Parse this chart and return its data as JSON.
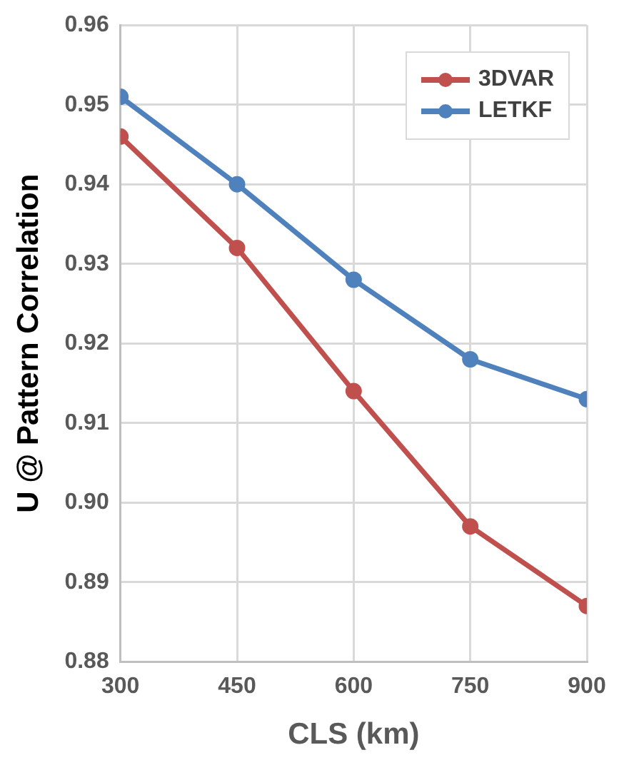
{
  "chart_data": {
    "type": "line",
    "xlabel": "CLS (km)",
    "ylabel": "U @ Pattern Correlation",
    "x": [
      300,
      450,
      600,
      750,
      900
    ],
    "series": [
      {
        "name": "3DVAR",
        "color": "#c0504d",
        "values": [
          0.946,
          0.932,
          0.914,
          0.897,
          0.887
        ]
      },
      {
        "name": "LETKF",
        "color": "#4f81bd",
        "values": [
          0.951,
          0.94,
          0.928,
          0.918,
          0.913
        ]
      }
    ],
    "xlim": [
      300,
      900
    ],
    "xticks": [
      300,
      450,
      600,
      750,
      900
    ],
    "ylim": [
      0.88,
      0.96
    ],
    "yticks": [
      0.88,
      0.89,
      {
        "value": 0.9,
        "label": "0.90"
      },
      0.91,
      0.92,
      0.93,
      0.94,
      0.95,
      0.96
    ],
    "grid": true,
    "legend": "top right",
    "marker": "circle",
    "line_style": "solid"
  }
}
